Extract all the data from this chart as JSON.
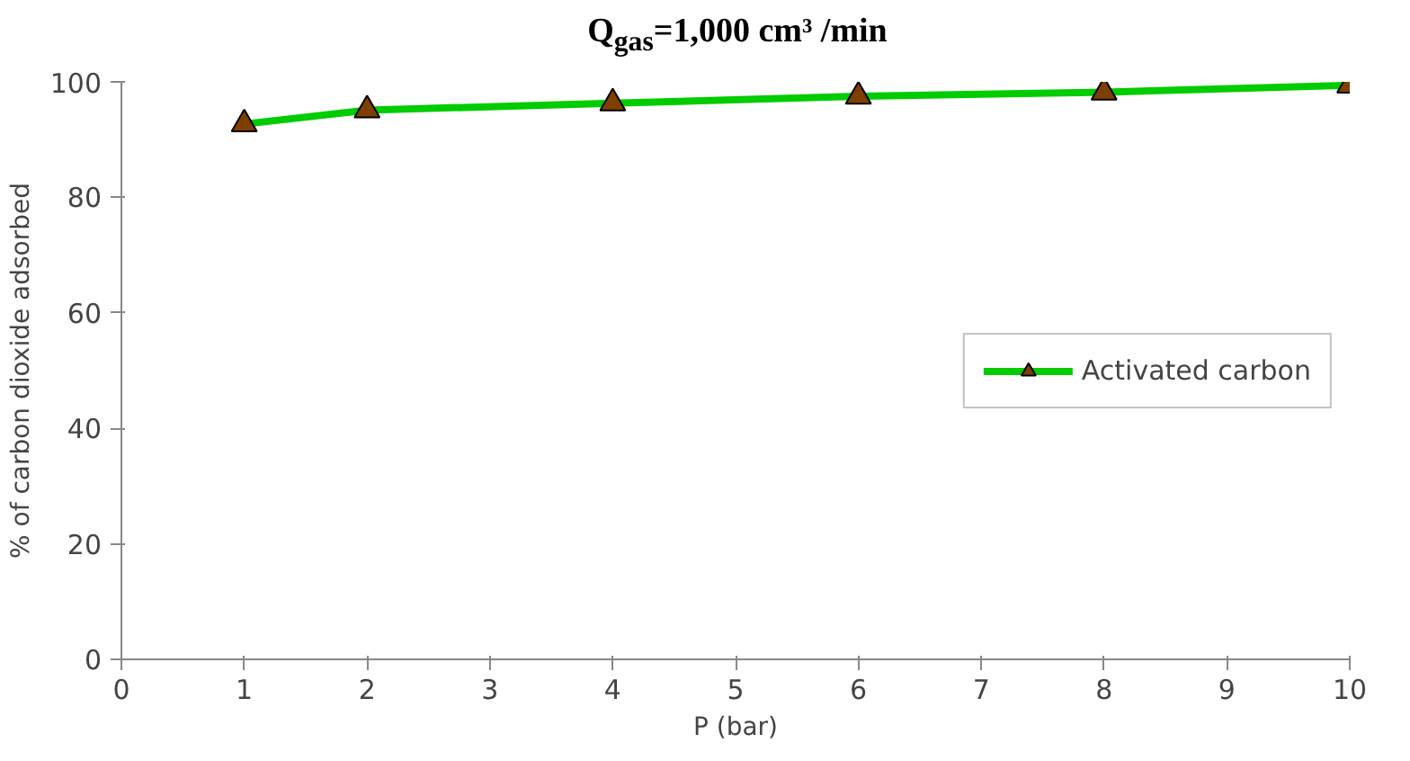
{
  "chart_data": {
    "type": "line",
    "title": "Q$_{gas}$=1,000 cm³ /min",
    "xlabel": "P (bar)",
    "ylabel": "% of carbon dioxide adsorbed",
    "x": [
      1,
      2,
      4,
      6,
      8,
      10
    ],
    "series": [
      {
        "name": "Activated carbon",
        "color": "#00cc00",
        "values": [
          92.7,
          95.1,
          96.3,
          97.5,
          98.2,
          99.4
        ]
      }
    ],
    "xlim": [
      0,
      10
    ],
    "xticks": [
      0,
      1,
      2,
      3,
      4,
      5,
      6,
      7,
      8,
      9,
      10
    ],
    "ylim": [
      0,
      100
    ],
    "yticks": [
      0,
      20,
      40,
      60,
      80,
      100
    ],
    "grid": false,
    "legend": "right",
    "marker": "triangle",
    "line_style": "solid"
  }
}
